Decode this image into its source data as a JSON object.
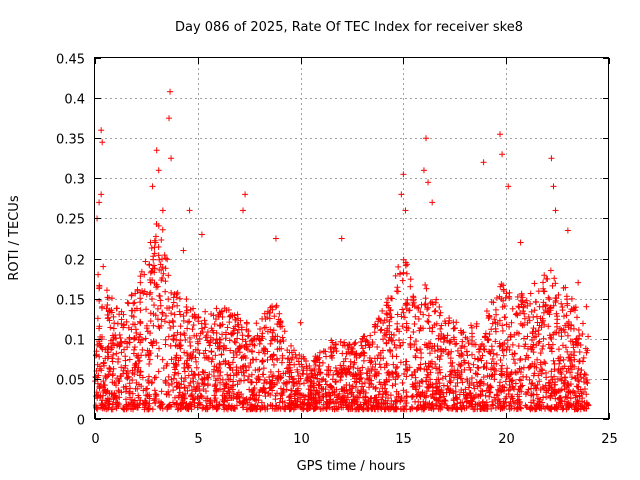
{
  "chart_data": {
    "type": "scatter",
    "title": "Day 086 of 2025, Rate Of TEC Index for receiver ske8",
    "xlabel": "GPS time / hours",
    "ylabel": "ROTI / TECUs",
    "xlim": [
      0,
      25
    ],
    "ylim": [
      0,
      0.45
    ],
    "xticks": [
      0,
      5,
      10,
      15,
      20,
      25
    ],
    "yticks": [
      0,
      0.05,
      0.1,
      0.15,
      0.2,
      0.25,
      0.3,
      0.35,
      0.4,
      0.45
    ],
    "xtick_labels": [
      "0",
      "5",
      "10",
      "15",
      "20",
      "25"
    ],
    "ytick_labels": [
      "0",
      "0.05",
      "0.1",
      "0.15",
      "0.2",
      "0.25",
      "0.3",
      "0.35",
      "0.4",
      "0.45"
    ],
    "grid": true,
    "marker": "+",
    "color": "#ff0000",
    "data_extent_hours": [
      0,
      24
    ],
    "series": [
      {
        "name": "ROTI",
        "points": [
          [
            0.05,
            0.015
          ],
          [
            0.1,
            0.25
          ],
          [
            0.2,
            0.27
          ],
          [
            0.3,
            0.36
          ],
          [
            0.35,
            0.345
          ],
          [
            0.3,
            0.28
          ],
          [
            0.15,
            0.18
          ],
          [
            0.4,
            0.19
          ],
          [
            2.7,
            0.22
          ],
          [
            2.8,
            0.29
          ],
          [
            3.0,
            0.335
          ],
          [
            3.1,
            0.31
          ],
          [
            3.3,
            0.26
          ],
          [
            3.6,
            0.375
          ],
          [
            3.65,
            0.408
          ],
          [
            3.7,
            0.325
          ],
          [
            4.3,
            0.21
          ],
          [
            4.6,
            0.26
          ],
          [
            5.2,
            0.23
          ],
          [
            7.3,
            0.28
          ],
          [
            7.2,
            0.26
          ],
          [
            8.8,
            0.225
          ],
          [
            10.0,
            0.12
          ],
          [
            12.0,
            0.225
          ],
          [
            15.0,
            0.305
          ],
          [
            14.9,
            0.28
          ],
          [
            15.1,
            0.26
          ],
          [
            16.1,
            0.35
          ],
          [
            16.0,
            0.31
          ],
          [
            16.2,
            0.295
          ],
          [
            16.4,
            0.27
          ],
          [
            18.9,
            0.32
          ],
          [
            19.7,
            0.355
          ],
          [
            19.8,
            0.33
          ],
          [
            20.1,
            0.29
          ],
          [
            20.7,
            0.22
          ],
          [
            22.2,
            0.325
          ],
          [
            22.3,
            0.29
          ],
          [
            22.4,
            0.26
          ],
          [
            23.0,
            0.235
          ],
          [
            23.5,
            0.17
          ],
          [
            23.9,
            0.14
          ]
        ]
      }
    ]
  }
}
